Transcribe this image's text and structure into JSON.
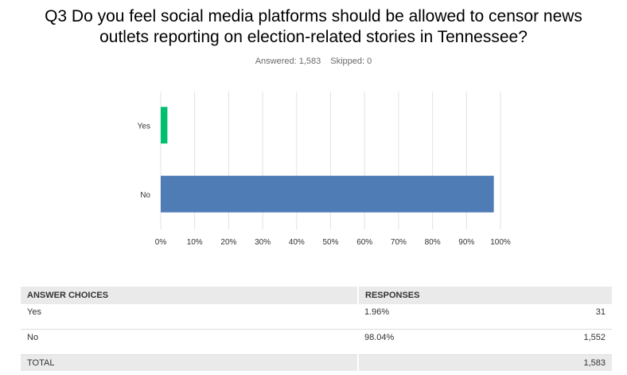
{
  "question": {
    "line1": "Q3 Do you feel social media platforms should be allowed to censor news",
    "line2": "outlets reporting on election-related stories in Tennessee?"
  },
  "summary": {
    "answered": "Answered: 1,583",
    "skipped": "Skipped: 0"
  },
  "chart_data": {
    "type": "bar",
    "orientation": "horizontal",
    "categories": [
      "Yes",
      "No"
    ],
    "values": [
      1.96,
      98.04
    ],
    "colors": [
      "#00bf6f",
      "#507cb6"
    ],
    "xlim": [
      0,
      100
    ],
    "xticks": [
      "0%",
      "10%",
      "20%",
      "30%",
      "40%",
      "50%",
      "60%",
      "70%",
      "80%",
      "90%",
      "100%"
    ],
    "grid": true,
    "legend": "none"
  },
  "table": {
    "headers": [
      "ANSWER CHOICES",
      "RESPONSES"
    ],
    "rows": [
      {
        "choice": "Yes",
        "percent": "1.96%",
        "count": "31"
      },
      {
        "choice": "No",
        "percent": "98.04%",
        "count": "1,552"
      }
    ],
    "total_label": "TOTAL",
    "total_count": "1,583"
  }
}
